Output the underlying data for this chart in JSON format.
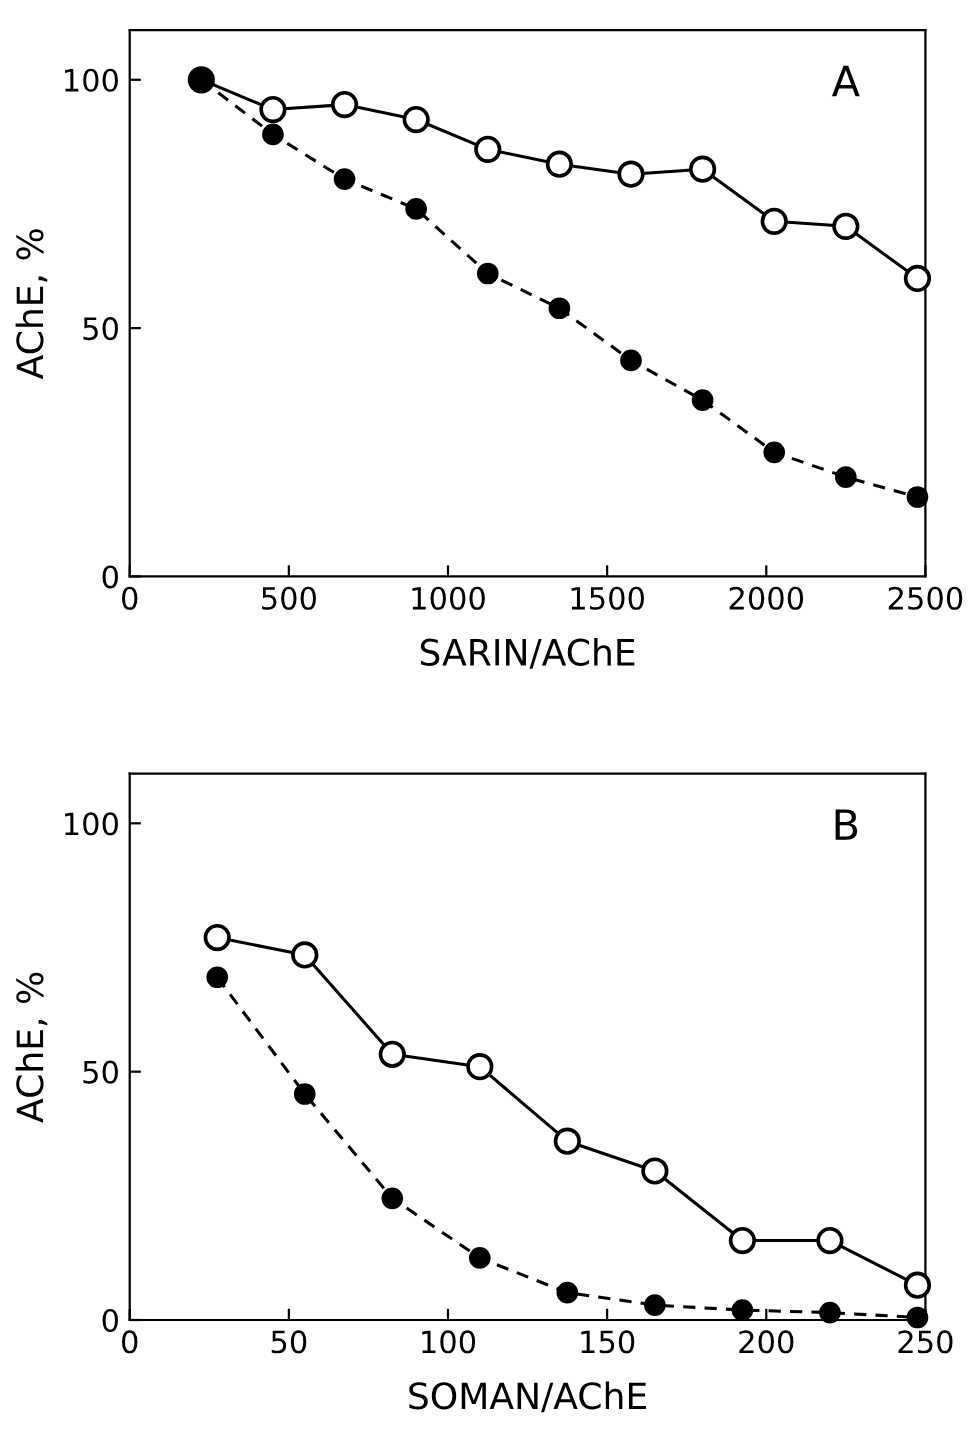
{
  "chart_data": [
    {
      "type": "line",
      "xlabel": "SARIN/AChE",
      "ylabel": "AChE, %",
      "annotations": [
        "A"
      ],
      "xlim": [
        0,
        2500
      ],
      "ylim": [
        0,
        110
      ],
      "xticks": [
        0,
        500,
        1000,
        1500,
        2000,
        2500
      ],
      "yticks": [
        0,
        50,
        100
      ],
      "grid": false,
      "legend": false,
      "series": [
        {
          "color": "#000000",
          "marker": "open circle",
          "line_style": "solid",
          "x": [
            225,
            450,
            675,
            900,
            1125,
            1350,
            1575,
            1800,
            2025,
            2250,
            2475
          ],
          "values": [
            100,
            94,
            95,
            92,
            86,
            83,
            81,
            82,
            71.5,
            70.5,
            60
          ]
        },
        {
          "color": "#000000",
          "marker": "circle",
          "line_style": "dashed",
          "x": [
            225,
            450,
            675,
            900,
            1125,
            1350,
            1575,
            1800,
            2025,
            2250,
            2475
          ],
          "values": [
            100,
            89,
            80,
            74,
            61,
            54,
            43.5,
            35.5,
            25,
            20,
            16
          ]
        }
      ]
    },
    {
      "type": "line",
      "xlabel": "SOMAN/AChE",
      "ylabel": "AChE, %",
      "annotations": [
        "B"
      ],
      "xlim": [
        0,
        250
      ],
      "ylim": [
        0,
        110
      ],
      "xticks": [
        0,
        50,
        100,
        150,
        200,
        250
      ],
      "yticks": [
        0,
        50,
        100
      ],
      "grid": false,
      "legend": false,
      "series": [
        {
          "color": "#000000",
          "marker": "open circle",
          "line_style": "solid",
          "x": [
            27.5,
            55,
            82.5,
            110,
            137.5,
            165,
            192.5,
            220,
            247.5
          ],
          "values": [
            77,
            73.5,
            53.5,
            51,
            36,
            30,
            16,
            16,
            7
          ]
        },
        {
          "color": "#000000",
          "marker": "circle",
          "line_style": "dashed",
          "x": [
            27.5,
            55,
            82.5,
            110,
            137.5,
            165,
            192.5,
            220,
            247.5
          ],
          "values": [
            69,
            45.5,
            24.5,
            12.5,
            5.5,
            3,
            2,
            1.5,
            0.5
          ]
        }
      ]
    }
  ]
}
